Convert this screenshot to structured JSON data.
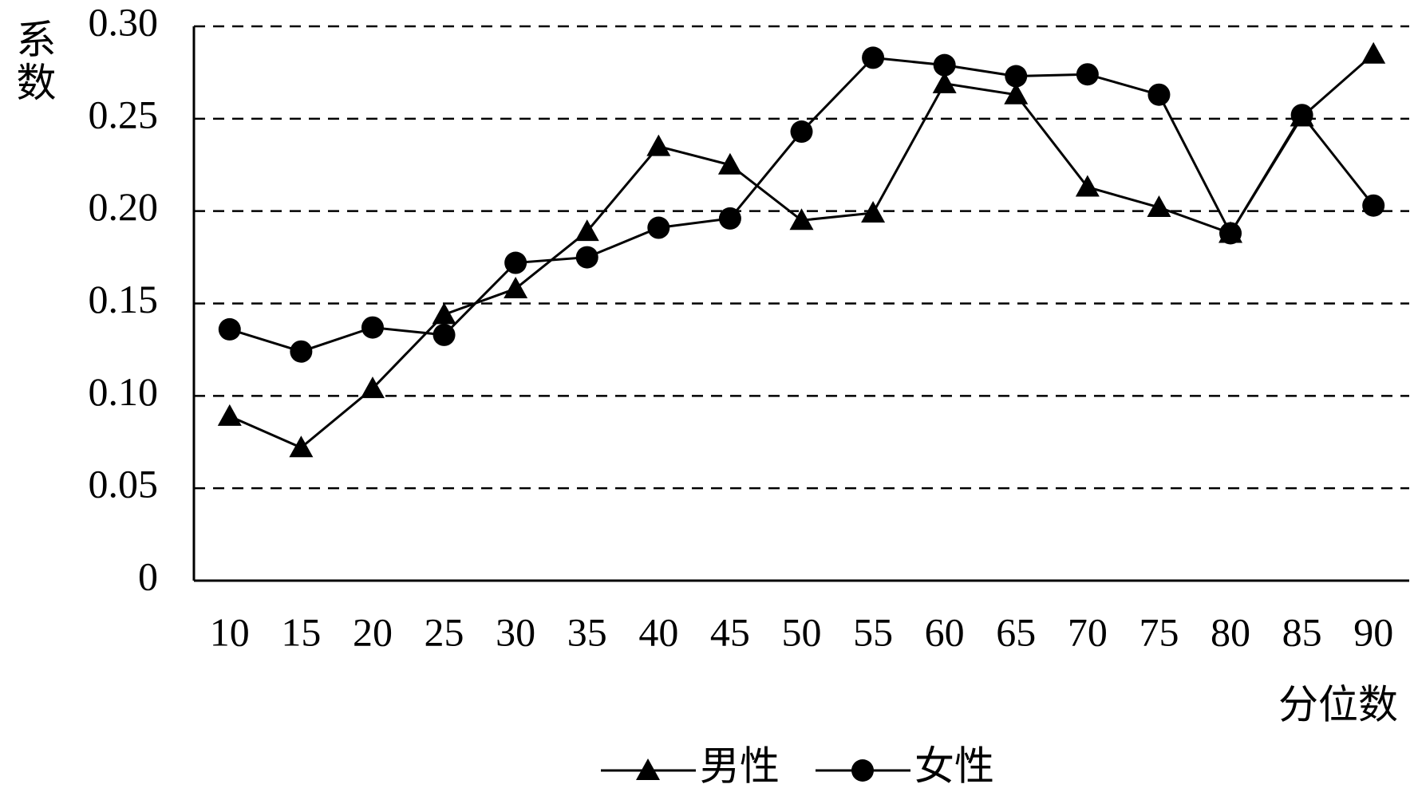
{
  "chart_data": {
    "type": "line",
    "y_label": "系数",
    "x_label": "分位数",
    "categories": [
      "10",
      "15",
      "20",
      "25",
      "30",
      "35",
      "40",
      "45",
      "50",
      "55",
      "60",
      "65",
      "70",
      "75",
      "80",
      "85",
      "90"
    ],
    "series": [
      {
        "name": "男性",
        "color": "#000000",
        "marker": "triangle",
        "values": [
          0.089,
          0.072,
          0.104,
          0.144,
          0.158,
          0.189,
          0.235,
          0.225,
          0.195,
          0.199,
          0.269,
          0.263,
          0.213,
          0.202,
          0.188,
          0.251,
          0.285
        ]
      },
      {
        "name": "女性",
        "color": "#000000",
        "marker": "circle",
        "values": [
          0.136,
          0.124,
          0.137,
          0.133,
          0.172,
          0.175,
          0.191,
          0.196,
          0.243,
          0.283,
          0.279,
          0.273,
          0.274,
          0.263,
          0.188,
          0.252,
          0.203
        ]
      }
    ],
    "ylim": [
      0,
      0.3
    ],
    "yticks": [
      0,
      {
        "value": 0.05,
        "label": "0.05"
      },
      {
        "value": 0.1,
        "label": "0.10"
      },
      {
        "value": 0.15,
        "label": "0.15"
      },
      {
        "value": 0.2,
        "label": "0.20"
      },
      {
        "value": 0.25,
        "label": "0.25"
      },
      {
        "value": 0.3,
        "label": "0.30"
      }
    ],
    "grid": true,
    "legend": "bottom"
  }
}
